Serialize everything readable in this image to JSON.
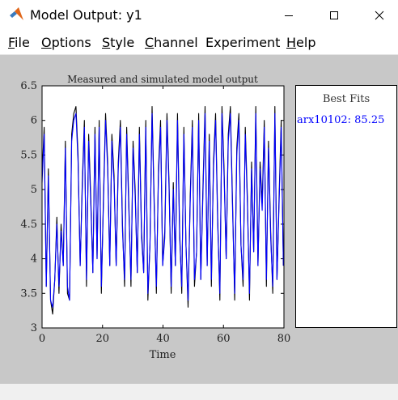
{
  "window": {
    "title": "Model Output: y1",
    "controls": [
      "minimize",
      "maximize",
      "close"
    ]
  },
  "menubar": [
    {
      "mnemonic": "F",
      "rest": "ile"
    },
    {
      "mnemonic": "O",
      "rest": "ptions"
    },
    {
      "mnemonic": "S",
      "rest": "tyle"
    },
    {
      "mnemonic": "C",
      "rest": "hannel"
    },
    {
      "mnemonic": "",
      "rest": "Experiment"
    },
    {
      "mnemonic": "H",
      "rest": "elp"
    }
  ],
  "legend": {
    "title": "Best Fits",
    "entries": [
      {
        "label": "arx10102: 85.25",
        "color": "#0000ff"
      }
    ]
  },
  "chart_data": {
    "type": "line",
    "title": "Measured and simulated model output",
    "xlabel": "Time",
    "ylabel": "",
    "xlim": [
      0,
      80
    ],
    "ylim": [
      3,
      6.5
    ],
    "x_ticks": [
      "0",
      "20",
      "40",
      "60",
      "80"
    ],
    "y_ticks": [
      "3",
      "3.5",
      "4",
      "4.5",
      "5",
      "5.5",
      "6",
      "6.5"
    ],
    "grid": false,
    "x": [
      0,
      0.7,
      1.4,
      2.1,
      2.8,
      3.5,
      4.2,
      4.9,
      5.6,
      6.3,
      7,
      7.7,
      8.4,
      9.1,
      9.8,
      10.5,
      11.2,
      11.9,
      12.6,
      13.3,
      14,
      14.7,
      15.4,
      16.1,
      16.8,
      17.5,
      18.2,
      18.9,
      19.6,
      20.3,
      21,
      21.7,
      22.4,
      23.1,
      23.8,
      24.5,
      25.2,
      25.9,
      26.6,
      27.3,
      28,
      28.7,
      29.4,
      30.1,
      30.8,
      31.5,
      32.2,
      32.9,
      33.6,
      34.3,
      35,
      35.7,
      36.4,
      37.1,
      37.8,
      38.5,
      39.2,
      39.9,
      40.6,
      41.3,
      42,
      42.7,
      43.4,
      44.1,
      44.8,
      45.5,
      46.2,
      46.9,
      47.6,
      48.3,
      49,
      49.7,
      50.4,
      51.1,
      51.8,
      52.5,
      53.2,
      53.9,
      54.6,
      55.3,
      56,
      56.7,
      57.4,
      58.1,
      58.8,
      59.5,
      60.2,
      60.9,
      61.6,
      62.3,
      63,
      63.7,
      64.4,
      65.1,
      65.8,
      66.5,
      67.2,
      67.9,
      68.6,
      69.3,
      70,
      70.7,
      71.4,
      72.1,
      72.8,
      73.5,
      74.2,
      74.9,
      75.6,
      76.3,
      77,
      77.7,
      78.4,
      79.1,
      79.8
    ],
    "series": [
      {
        "color": "#000000",
        "values": [
          5.2,
          5.9,
          3.6,
          5.3,
          3.4,
          3.2,
          3.7,
          4.6,
          3.5,
          4.5,
          3.9,
          5.7,
          3.5,
          3.4,
          5.8,
          6.1,
          6.2,
          5.5,
          3.9,
          5.1,
          6.0,
          3.6,
          5.8,
          4.9,
          3.8,
          5.9,
          4.0,
          6.0,
          3.5,
          4.9,
          6.1,
          5.4,
          3.9,
          5.8,
          5.2,
          3.9,
          5.4,
          6.0,
          4.5,
          3.6,
          5.9,
          4.8,
          3.6,
          5.7,
          5.0,
          3.8,
          5.9,
          4.4,
          3.8,
          6.0,
          3.4,
          4.2,
          6.2,
          4.8,
          3.5,
          5.3,
          6.0,
          3.9,
          4.4,
          6.1,
          5.1,
          3.5,
          5.1,
          3.9,
          6.1,
          4.4,
          3.5,
          5.9,
          4.2,
          3.3,
          4.9,
          6.0,
          3.6,
          4.1,
          6.1,
          3.7,
          5.0,
          6.2,
          3.9,
          5.8,
          3.6,
          5.4,
          6.1,
          4.6,
          3.4,
          6.2,
          5.3,
          4.0,
          5.8,
          6.2,
          4.8,
          3.4,
          5.6,
          6.1,
          4.2,
          3.6,
          5.9,
          4.9,
          3.4,
          5.4,
          4.1,
          6.2,
          3.9,
          5.4,
          4.8,
          6.0,
          3.6,
          5.7,
          4.4,
          3.5,
          6.2,
          3.7,
          4.9,
          6.0,
          3.9
        ]
      },
      {
        "color": "#0000ff",
        "values": [
          5.1,
          5.8,
          3.6,
          5.2,
          3.4,
          3.3,
          3.7,
          4.5,
          3.6,
          4.4,
          3.9,
          5.6,
          3.6,
          3.4,
          5.7,
          6.0,
          6.1,
          5.4,
          3.9,
          5.0,
          5.9,
          3.7,
          5.7,
          4.8,
          3.8,
          5.8,
          4.0,
          5.9,
          3.6,
          4.8,
          6.0,
          5.3,
          3.9,
          5.7,
          5.1,
          3.9,
          5.3,
          5.9,
          4.4,
          3.7,
          5.8,
          4.7,
          3.7,
          5.6,
          4.9,
          3.8,
          5.8,
          4.3,
          3.8,
          5.9,
          3.5,
          4.2,
          6.1,
          4.7,
          3.6,
          5.2,
          5.9,
          3.9,
          4.3,
          6.0,
          5.0,
          3.6,
          5.0,
          3.9,
          6.0,
          4.3,
          3.6,
          5.8,
          4.2,
          3.4,
          4.8,
          5.9,
          3.7,
          4.1,
          6.0,
          3.7,
          4.9,
          6.1,
          3.9,
          5.7,
          3.7,
          5.3,
          6.0,
          4.5,
          3.5,
          6.1,
          5.2,
          4.0,
          5.7,
          6.1,
          4.7,
          3.5,
          5.5,
          6.0,
          4.2,
          3.7,
          5.8,
          4.8,
          3.5,
          5.3,
          4.1,
          6.1,
          3.9,
          5.3,
          4.7,
          5.9,
          3.7,
          5.6,
          4.3,
          3.6,
          6.1,
          3.7,
          4.8,
          5.9,
          3.9
        ]
      }
    ]
  }
}
